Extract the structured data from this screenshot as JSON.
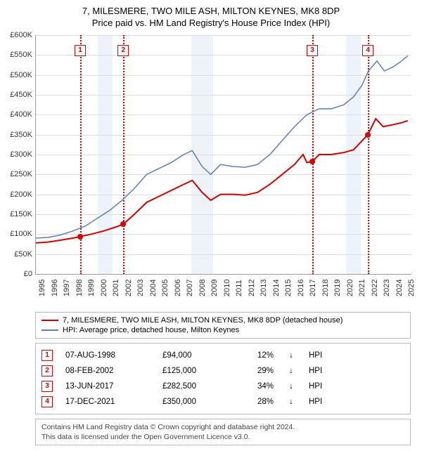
{
  "title": {
    "line1": "7, MILESMERE, TWO MILE ASH, MILTON KEYNES, MK8 8DP",
    "line2": "Price paid vs. HM Land Registry's House Price Index (HPI)"
  },
  "chart": {
    "type": "line",
    "background_color": "#ffffff",
    "grid_color": "#dcdcdc",
    "axis_color": "#999999",
    "x_range": [
      1995,
      2025.5
    ],
    "y_range": [
      0,
      600000
    ],
    "y_ticks": [
      0,
      50000,
      100000,
      150000,
      200000,
      250000,
      300000,
      350000,
      400000,
      450000,
      500000,
      550000,
      600000
    ],
    "y_tick_labels": [
      "£0",
      "£50K",
      "£100K",
      "£150K",
      "£200K",
      "£250K",
      "£300K",
      "£350K",
      "£400K",
      "£450K",
      "£500K",
      "£550K",
      "£600K"
    ],
    "x_ticks": [
      1995,
      1996,
      1997,
      1998,
      1999,
      2000,
      2001,
      2002,
      2003,
      2004,
      2005,
      2006,
      2007,
      2008,
      2009,
      2010,
      2011,
      2012,
      2013,
      2014,
      2015,
      2016,
      2017,
      2018,
      2019,
      2020,
      2021,
      2022,
      2023,
      2024,
      2025
    ],
    "recession_bands": [
      {
        "start": 2000.0,
        "end": 2001.2,
        "color": "#eef3f9"
      },
      {
        "start": 2007.6,
        "end": 2009.4,
        "color": "#eef3f9"
      },
      {
        "start": 2020.2,
        "end": 2021.4,
        "color": "#eef3f9"
      }
    ],
    "series": [
      {
        "name": "price_paid",
        "color": "#d30000",
        "line_width": 2,
        "points": [
          [
            1995.0,
            78000
          ],
          [
            1996.0,
            80000
          ],
          [
            1997.0,
            85000
          ],
          [
            1998.0,
            90000
          ],
          [
            1998.6,
            94000
          ],
          [
            1999.5,
            100000
          ],
          [
            2000.5,
            108000
          ],
          [
            2001.5,
            118000
          ],
          [
            2002.1,
            125000
          ],
          [
            2003.0,
            150000
          ],
          [
            2004.0,
            180000
          ],
          [
            2005.0,
            195000
          ],
          [
            2006.0,
            210000
          ],
          [
            2007.0,
            225000
          ],
          [
            2007.7,
            235000
          ],
          [
            2008.5,
            205000
          ],
          [
            2009.2,
            185000
          ],
          [
            2010.0,
            200000
          ],
          [
            2011.0,
            200000
          ],
          [
            2012.0,
            198000
          ],
          [
            2013.0,
            205000
          ],
          [
            2014.0,
            225000
          ],
          [
            2015.0,
            250000
          ],
          [
            2016.0,
            275000
          ],
          [
            2016.7,
            300000
          ],
          [
            2017.0,
            280000
          ],
          [
            2017.45,
            282500
          ],
          [
            2018.0,
            300000
          ],
          [
            2019.0,
            300000
          ],
          [
            2020.0,
            305000
          ],
          [
            2020.8,
            312000
          ],
          [
            2021.5,
            335000
          ],
          [
            2021.96,
            350000
          ],
          [
            2022.6,
            390000
          ],
          [
            2023.2,
            370000
          ],
          [
            2024.0,
            375000
          ],
          [
            2024.7,
            380000
          ],
          [
            2025.2,
            385000
          ]
        ]
      },
      {
        "name": "hpi",
        "color": "#5b7fb8",
        "line_width": 1.5,
        "points": [
          [
            1995.0,
            90000
          ],
          [
            1996.0,
            92000
          ],
          [
            1997.0,
            98000
          ],
          [
            1998.0,
            108000
          ],
          [
            1999.0,
            120000
          ],
          [
            2000.0,
            140000
          ],
          [
            2001.0,
            160000
          ],
          [
            2002.0,
            185000
          ],
          [
            2003.0,
            215000
          ],
          [
            2004.0,
            250000
          ],
          [
            2005.0,
            265000
          ],
          [
            2006.0,
            280000
          ],
          [
            2007.0,
            300000
          ],
          [
            2007.7,
            310000
          ],
          [
            2008.5,
            270000
          ],
          [
            2009.2,
            250000
          ],
          [
            2010.0,
            275000
          ],
          [
            2011.0,
            270000
          ],
          [
            2012.0,
            268000
          ],
          [
            2013.0,
            275000
          ],
          [
            2014.0,
            300000
          ],
          [
            2015.0,
            335000
          ],
          [
            2016.0,
            370000
          ],
          [
            2017.0,
            400000
          ],
          [
            2018.0,
            415000
          ],
          [
            2019.0,
            415000
          ],
          [
            2020.0,
            425000
          ],
          [
            2020.8,
            445000
          ],
          [
            2021.5,
            475000
          ],
          [
            2022.0,
            510000
          ],
          [
            2022.7,
            535000
          ],
          [
            2023.3,
            510000
          ],
          [
            2024.0,
            520000
          ],
          [
            2024.7,
            535000
          ],
          [
            2025.2,
            548000
          ]
        ]
      }
    ],
    "events": [
      {
        "n": "1",
        "x": 1998.6,
        "y_topbox": 14
      },
      {
        "n": "2",
        "x": 2002.1,
        "y_topbox": 14
      },
      {
        "n": "3",
        "x": 2017.45,
        "y_topbox": 14
      },
      {
        "n": "4",
        "x": 2021.96,
        "y_topbox": 14
      }
    ],
    "event_markers_y": {
      "1": 94000,
      "2": 125000,
      "3": 282500,
      "4": 350000
    }
  },
  "legend": {
    "items": [
      {
        "color": "#d30000",
        "label": "7, MILESMERE, TWO MILE ASH, MILTON KEYNES, MK8 8DP (detached house)"
      },
      {
        "color": "#5b7fb8",
        "label": "HPI: Average price, detached house, Milton Keynes"
      }
    ]
  },
  "price_rows": [
    {
      "n": "1",
      "date": "07-AUG-1998",
      "price": "£94,000",
      "pct": "12%",
      "arrow": "↓",
      "suffix": "HPI"
    },
    {
      "n": "2",
      "date": "08-FEB-2002",
      "price": "£125,000",
      "pct": "29%",
      "arrow": "↓",
      "suffix": "HPI"
    },
    {
      "n": "3",
      "date": "13-JUN-2017",
      "price": "£282,500",
      "pct": "34%",
      "arrow": "↓",
      "suffix": "HPI"
    },
    {
      "n": "4",
      "date": "17-DEC-2021",
      "price": "£350,000",
      "pct": "28%",
      "arrow": "↓",
      "suffix": "HPI"
    }
  ],
  "footer": {
    "line1": "Contains HM Land Registry data © Crown copyright and database right 2024.",
    "line2": "This data is licensed under the Open Government Licence v3.0."
  }
}
